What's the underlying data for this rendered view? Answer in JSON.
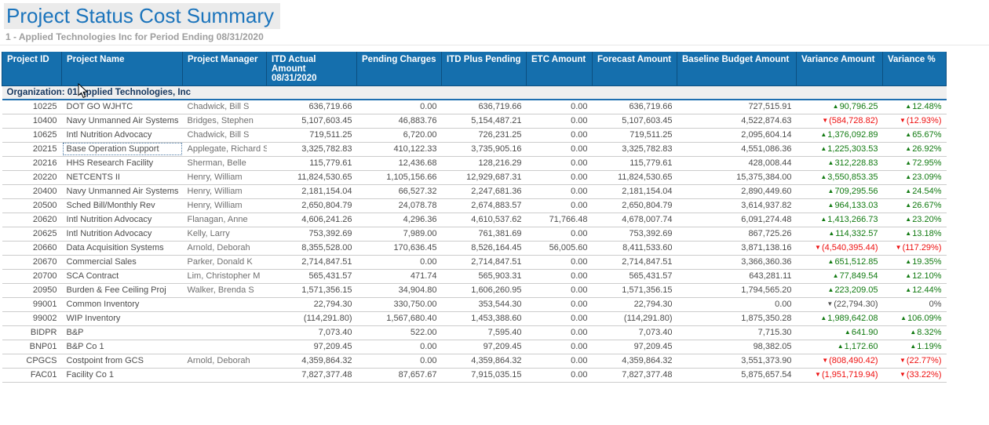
{
  "page": {
    "title": "Project Status Cost Summary",
    "subtitle": "1 - Applied Technologies Inc for Period Ending 08/31/2020"
  },
  "colors": {
    "header_bg": "#156FAD",
    "header_sep": "#0C4F80",
    "group_bg": "#EFEFEF",
    "group_text": "#17375E",
    "group_border": "#1F6FB0",
    "positive": "#117A11",
    "negative": "#EE1111",
    "neutral": "#555555",
    "title": "#1B74BC",
    "subtitle": "#9E9E9E"
  },
  "icons": {
    "up": "▲",
    "down": "▼"
  },
  "table": {
    "columns": [
      {
        "label": "Project ID"
      },
      {
        "label": "Project Name"
      },
      {
        "label": "Project Manager"
      },
      {
        "label": "ITD Actual Amount",
        "label2": "08/31/2020"
      },
      {
        "label": "Pending Charges"
      },
      {
        "label": "ITD Plus Pending"
      },
      {
        "label": "ETC Amount"
      },
      {
        "label": "Forecast Amount"
      },
      {
        "label": "Baseline Budget Amount"
      },
      {
        "label": "Variance Amount"
      },
      {
        "label": "Variance %"
      }
    ],
    "group_row": "Organization: 01 Applied Technologies, Inc",
    "rows": [
      {
        "id": "10225",
        "name": "DOT GO WJHTC",
        "mgr": "Chadwick, Bill S",
        "vals": [
          "636,719.66",
          "0.00",
          "636,719.66",
          "0.00",
          "636,719.66",
          "727,515.91"
        ],
        "va": {
          "dir": "up",
          "text": "90,796.25"
        },
        "vp": {
          "dir": "up",
          "text": "12.48%"
        }
      },
      {
        "id": "10400",
        "name": "Navy Unmanned Air Systems",
        "mgr": "Bridges, Stephen",
        "vals": [
          "5,107,603.45",
          "46,883.76",
          "5,154,487.21",
          "0.00",
          "5,107,603.45",
          "4,522,874.63"
        ],
        "va": {
          "dir": "down",
          "text": "(584,728.82)"
        },
        "vp": {
          "dir": "down",
          "text": "(12.93%)"
        }
      },
      {
        "id": "10625",
        "name": "Intl Nutrition Advocacy",
        "mgr": "Chadwick, Bill S",
        "vals": [
          "719,511.25",
          "6,720.00",
          "726,231.25",
          "0.00",
          "719,511.25",
          "2,095,604.14"
        ],
        "va": {
          "dir": "up",
          "text": "1,376,092.89"
        },
        "vp": {
          "dir": "up",
          "text": "65.67%"
        }
      },
      {
        "id": "20215",
        "name": "Base Operation Support",
        "mgr": "Applegate, Richard S",
        "focused": true,
        "vals": [
          "3,325,782.83",
          "410,122.33",
          "3,735,905.16",
          "0.00",
          "3,325,782.83",
          "4,551,086.36"
        ],
        "va": {
          "dir": "up",
          "text": "1,225,303.53"
        },
        "vp": {
          "dir": "up",
          "text": "26.92%"
        }
      },
      {
        "id": "20216",
        "name": "HHS Research Facility",
        "mgr": "Sherman, Belle",
        "vals": [
          "115,779.61",
          "12,436.68",
          "128,216.29",
          "0.00",
          "115,779.61",
          "428,008.44"
        ],
        "va": {
          "dir": "up",
          "text": "312,228.83"
        },
        "vp": {
          "dir": "up",
          "text": "72.95%"
        }
      },
      {
        "id": "20220",
        "name": "NETCENTS II",
        "mgr": "Henry, William",
        "vals": [
          "11,824,530.65",
          "1,105,156.66",
          "12,929,687.31",
          "0.00",
          "11,824,530.65",
          "15,375,384.00"
        ],
        "va": {
          "dir": "up",
          "text": "3,550,853.35"
        },
        "vp": {
          "dir": "up",
          "text": "23.09%"
        }
      },
      {
        "id": "20400",
        "name": "Navy Unmanned Air Systems",
        "mgr": "Henry, William",
        "vals": [
          "2,181,154.04",
          "66,527.32",
          "2,247,681.36",
          "0.00",
          "2,181,154.04",
          "2,890,449.60"
        ],
        "va": {
          "dir": "up",
          "text": "709,295.56"
        },
        "vp": {
          "dir": "up",
          "text": "24.54%"
        }
      },
      {
        "id": "20500",
        "name": "Sched Bill/Monthly Rev",
        "mgr": "Henry, William",
        "vals": [
          "2,650,804.79",
          "24,078.78",
          "2,674,883.57",
          "0.00",
          "2,650,804.79",
          "3,614,937.82"
        ],
        "va": {
          "dir": "up",
          "text": "964,133.03"
        },
        "vp": {
          "dir": "up",
          "text": "26.67%"
        }
      },
      {
        "id": "20620",
        "name": "Intl Nutrition Advocacy",
        "mgr": "Flanagan, Anne",
        "vals": [
          "4,606,241.26",
          "4,296.36",
          "4,610,537.62",
          "71,766.48",
          "4,678,007.74",
          "6,091,274.48"
        ],
        "va": {
          "dir": "up",
          "text": "1,413,266.73"
        },
        "vp": {
          "dir": "up",
          "text": "23.20%"
        }
      },
      {
        "id": "20625",
        "name": "Intl Nutrition Advocacy",
        "mgr": "Kelly, Larry",
        "vals": [
          "753,392.69",
          "7,989.00",
          "761,381.69",
          "0.00",
          "753,392.69",
          "867,725.26"
        ],
        "va": {
          "dir": "up",
          "text": "114,332.57"
        },
        "vp": {
          "dir": "up",
          "text": "13.18%"
        }
      },
      {
        "id": "20660",
        "name": "Data Acquisition Systems",
        "mgr": "Arnold, Deborah",
        "vals": [
          "8,355,528.00",
          "170,636.45",
          "8,526,164.45",
          "56,005.60",
          "8,411,533.60",
          "3,871,138.16"
        ],
        "va": {
          "dir": "down",
          "text": "(4,540,395.44)"
        },
        "vp": {
          "dir": "down",
          "text": "(117.29%)"
        }
      },
      {
        "id": "20670",
        "name": "Commercial Sales",
        "mgr": "Parker, Donald K",
        "vals": [
          "2,714,847.51",
          "0.00",
          "2,714,847.51",
          "0.00",
          "2,714,847.51",
          "3,366,360.36"
        ],
        "va": {
          "dir": "up",
          "text": "651,512.85"
        },
        "vp": {
          "dir": "up",
          "text": "19.35%"
        }
      },
      {
        "id": "20700",
        "name": "SCA Contract",
        "mgr": "Lim, Christopher M",
        "vals": [
          "565,431.57",
          "471.74",
          "565,903.31",
          "0.00",
          "565,431.57",
          "643,281.11"
        ],
        "va": {
          "dir": "up",
          "text": "77,849.54"
        },
        "vp": {
          "dir": "up",
          "text": "12.10%"
        }
      },
      {
        "id": "20950",
        "name": "Burden & Fee Ceiling Proj",
        "mgr": "Walker, Brenda S",
        "vals": [
          "1,571,356.15",
          "34,904.80",
          "1,606,260.95",
          "0.00",
          "1,571,356.15",
          "1,794,565.20"
        ],
        "va": {
          "dir": "up",
          "text": "223,209.05"
        },
        "vp": {
          "dir": "up",
          "text": "12.44%"
        }
      },
      {
        "id": "99001",
        "name": "Common Inventory",
        "mgr": "",
        "vals": [
          "22,794.30",
          "330,750.00",
          "353,544.30",
          "0.00",
          "22,794.30",
          "0.00"
        ],
        "va": {
          "dir": "flat",
          "text": "(22,794.30)"
        },
        "vp": {
          "dir": "none",
          "text": "0%"
        }
      },
      {
        "id": "99002",
        "name": "WIP Inventory",
        "mgr": "",
        "vals": [
          "(114,291.80)",
          "1,567,680.40",
          "1,453,388.60",
          "0.00",
          "(114,291.80)",
          "1,875,350.28"
        ],
        "va": {
          "dir": "up",
          "text": "1,989,642.08"
        },
        "vp": {
          "dir": "up",
          "text": "106.09%"
        }
      },
      {
        "id": "BIDPR",
        "name": "B&P",
        "mgr": "",
        "vals": [
          "7,073.40",
          "522.00",
          "7,595.40",
          "0.00",
          "7,073.40",
          "7,715.30"
        ],
        "va": {
          "dir": "up",
          "text": "641.90"
        },
        "vp": {
          "dir": "up",
          "text": "8.32%"
        }
      },
      {
        "id": "BNP01",
        "name": "B&P Co 1",
        "mgr": "",
        "vals": [
          "97,209.45",
          "0.00",
          "97,209.45",
          "0.00",
          "97,209.45",
          "98,382.05"
        ],
        "va": {
          "dir": "up",
          "text": "1,172.60"
        },
        "vp": {
          "dir": "up",
          "text": "1.19%"
        }
      },
      {
        "id": "CPGCS",
        "name": "Costpoint from GCS",
        "mgr": "Arnold, Deborah",
        "vals": [
          "4,359,864.32",
          "0.00",
          "4,359,864.32",
          "0.00",
          "4,359,864.32",
          "3,551,373.90"
        ],
        "va": {
          "dir": "down",
          "text": "(808,490.42)"
        },
        "vp": {
          "dir": "down",
          "text": "(22.77%)"
        }
      },
      {
        "id": "FAC01",
        "name": "Facility Co 1",
        "mgr": "",
        "vals": [
          "7,827,377.48",
          "87,657.67",
          "7,915,035.15",
          "0.00",
          "7,827,377.48",
          "5,875,657.54"
        ],
        "va": {
          "dir": "down",
          "text": "(1,951,719.94)"
        },
        "vp": {
          "dir": "down",
          "text": "(33.22%)"
        }
      }
    ]
  }
}
